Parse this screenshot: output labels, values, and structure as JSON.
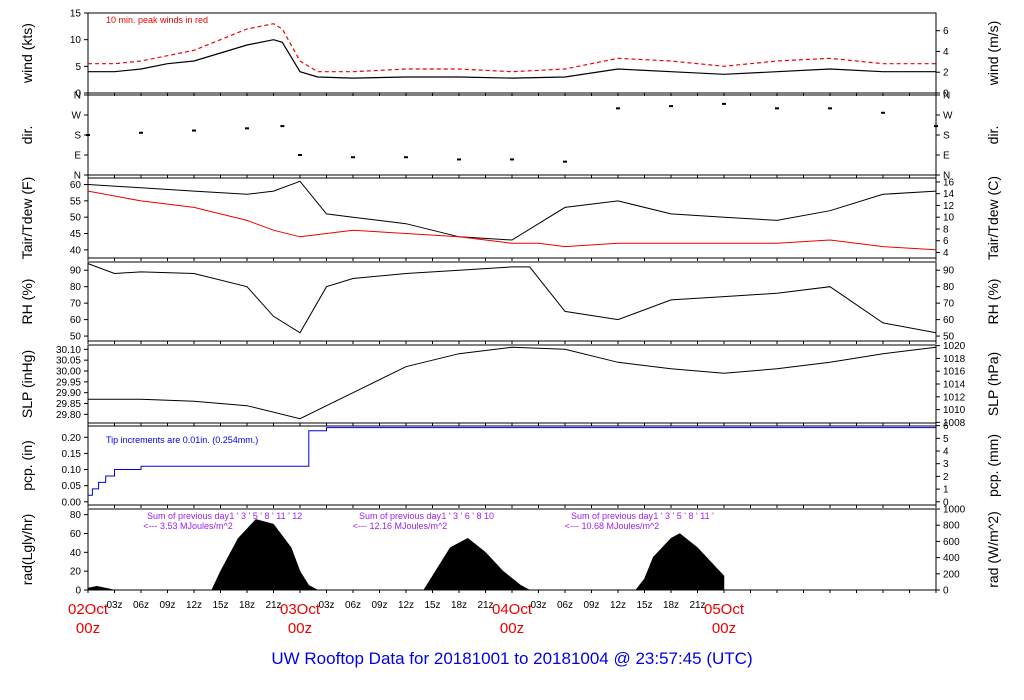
{
  "footer_title": "UW Rooftop Data for 20181001  to  20181004 @ 23:57:45  (UTC)",
  "colors": {
    "black": "#000000",
    "red": "#ee0000",
    "blue": "#0000ee",
    "purple": "#a020f0"
  },
  "chart_data": [
    {
      "type": "line",
      "id": "wind",
      "ylabel": "wind (kts)",
      "ylabel_right": "wind (m/s)",
      "ylim": [
        0,
        15
      ],
      "yticks": [
        "0",
        "5",
        "10",
        "15"
      ],
      "ylim_right": [
        0,
        7.7
      ],
      "yticks_right": [
        "0",
        "2",
        "4",
        "6"
      ],
      "annotation": "10 min. peak winds in red",
      "x_hours": [
        0,
        3,
        6,
        9,
        12,
        15,
        18,
        21,
        22,
        24,
        26,
        30,
        36,
        42,
        48,
        54,
        60,
        66,
        72,
        78,
        84,
        90,
        96
      ],
      "series": [
        {
          "color": "#000000",
          "values": [
            4,
            4,
            4.5,
            5.5,
            6,
            7.5,
            9,
            10,
            9.5,
            4,
            3,
            2.8,
            3,
            3,
            2.8,
            3,
            4.5,
            4,
            3.5,
            4,
            4.5,
            4,
            4
          ]
        },
        {
          "color": "#ee0000",
          "values": [
            5.5,
            5.5,
            6,
            7,
            8,
            10,
            12,
            13,
            12,
            6,
            4,
            4,
            4.5,
            4.5,
            4,
            4.5,
            6.5,
            6,
            5,
            6,
            6.5,
            5.5,
            5.5
          ]
        }
      ]
    },
    {
      "type": "scatter",
      "id": "dir",
      "ylabel": "dir.",
      "ylabel_right": "dir.",
      "yticks": [
        "N",
        "E",
        "S",
        "W",
        "N"
      ],
      "ylim": [
        0,
        360
      ],
      "x_hours": [
        0,
        6,
        12,
        18,
        22,
        24,
        30,
        36,
        42,
        48,
        54,
        60,
        66,
        72,
        78,
        84,
        90,
        96
      ],
      "values": [
        180,
        190,
        200,
        210,
        220,
        90,
        80,
        80,
        70,
        70,
        60,
        300,
        310,
        320,
        300,
        300,
        280,
        220
      ]
    },
    {
      "type": "line",
      "id": "temp",
      "ylabel": "Tair/Tdew (F)",
      "ylabel_right": "Tair/Tdew (C)",
      "ylim": [
        37.5,
        62
      ],
      "yticks": [
        "40",
        "45",
        "50",
        "55",
        "60"
      ],
      "ylim_right": [
        3.06,
        16.67
      ],
      "yticks_right": [
        "4",
        "6",
        "8",
        "10",
        "12",
        "14",
        "16"
      ],
      "x_hours": [
        0,
        6,
        12,
        18,
        21,
        24,
        27,
        30,
        36,
        42,
        48,
        51,
        54,
        60,
        66,
        72,
        78,
        84,
        90,
        96
      ],
      "series": [
        {
          "color": "#000000",
          "values": [
            60,
            59,
            58,
            57,
            58,
            61,
            51,
            50,
            48,
            44,
            43,
            48,
            53,
            55,
            51,
            50,
            49,
            52,
            57,
            58
          ]
        },
        {
          "color": "#ee0000",
          "values": [
            58,
            55,
            53,
            49,
            46,
            44,
            45,
            46,
            45,
            44,
            42,
            42,
            41,
            42,
            42,
            42,
            42,
            43,
            41,
            40
          ]
        }
      ]
    },
    {
      "type": "line",
      "id": "rh",
      "ylabel": "RH (%)",
      "ylabel_right": "RH (%)",
      "ylim": [
        47,
        95
      ],
      "yticks": [
        "50",
        "60",
        "70",
        "80",
        "90"
      ],
      "yticks_right": [
        "50",
        "60",
        "70",
        "80",
        "90"
      ],
      "x_hours": [
        0,
        3,
        6,
        12,
        18,
        21,
        24,
        27,
        30,
        36,
        42,
        48,
        50,
        54,
        60,
        66,
        72,
        78,
        84,
        90,
        96
      ],
      "values": [
        94,
        88,
        89,
        88,
        80,
        62,
        52,
        80,
        85,
        88,
        90,
        92,
        92,
        65,
        60,
        72,
        74,
        76,
        80,
        58,
        52
      ]
    },
    {
      "type": "line",
      "id": "slp",
      "ylabel": "SLP (inHg)",
      "ylabel_right": "SLP (hPa)",
      "ylim": [
        29.76,
        30.12
      ],
      "yticks": [
        "29.80",
        "29.85",
        "29.90",
        "29.95",
        "30.00",
        "30.05",
        "30.10"
      ],
      "ylim_right": [
        1007.9,
        1020.1
      ],
      "yticks_right": [
        "1008",
        "1010",
        "1012",
        "1014",
        "1016",
        "1018",
        "1020"
      ],
      "x_hours": [
        0,
        6,
        12,
        18,
        24,
        30,
        36,
        42,
        48,
        54,
        60,
        66,
        72,
        78,
        84,
        90,
        96
      ],
      "values": [
        29.87,
        29.87,
        29.86,
        29.84,
        29.78,
        29.9,
        30.02,
        30.08,
        30.11,
        30.1,
        30.04,
        30.01,
        29.99,
        30.01,
        30.04,
        30.08,
        30.11
      ]
    },
    {
      "type": "line",
      "id": "pcp",
      "ylabel": "pcp. (in)",
      "ylabel_right": "pcp. (mm)",
      "ylim": [
        -0.01,
        0.235
      ],
      "yticks": [
        "0.00",
        "0.05",
        "0.10",
        "0.15",
        "0.20"
      ],
      "ylim_right": [
        -0.254,
        5.969
      ],
      "yticks_right": [
        "0",
        "1",
        "2",
        "3",
        "4",
        "5",
        "6"
      ],
      "annotation": "Tip increments are 0.01in. (0.254mm.)",
      "x_hours": [
        0,
        0.5,
        1.2,
        2,
        3,
        6,
        12,
        18,
        24,
        25,
        26,
        27,
        96
      ],
      "values": [
        0.02,
        0.04,
        0.06,
        0.08,
        0.1,
        0.11,
        0.11,
        0.11,
        0.11,
        0.22,
        0.22,
        0.23,
        0.23
      ]
    },
    {
      "type": "area",
      "id": "rad",
      "ylabel": "rad(Lgly/hr)",
      "ylabel_right": "rad (W/m^2)",
      "ylim": [
        0,
        86
      ],
      "yticks": [
        "0",
        "20",
        "40",
        "60",
        "80"
      ],
      "ylim_right": [
        0,
        1000
      ],
      "yticks_right": [
        "0",
        "200",
        "400",
        "600",
        "800",
        "1000"
      ],
      "day_notes": [
        {
          "x_hours": 12,
          "line1": "Sum of previous day",
          "line2": "<--- 3.53 MJoules/m^2"
        },
        {
          "x_hours": 36,
          "line1": "Sum of previous day",
          "line2": "<--- 12.16 MJoules/m^2"
        },
        {
          "x_hours": 60,
          "line1": "Sum of previous day",
          "line2": "<--- 10.68 MJoules/m^2"
        }
      ],
      "hour_marks": [
        {
          "x_hours": 16.0,
          "text": "1 ' 3 ' 5 ' 8 ' 11 ' 12"
        },
        {
          "x_hours": 40.0,
          "text": "1 ' 3 ' 6 ' 8   10"
        },
        {
          "x_hours": 64.0,
          "text": "1 ' 3 ' 5 ' 8 ' 11 '"
        }
      ],
      "x_hours": [
        0,
        1,
        2,
        3,
        14,
        15,
        17,
        19,
        21,
        23,
        24,
        25,
        26,
        38,
        39,
        41,
        43,
        45,
        47,
        49,
        50,
        62,
        63,
        64,
        66,
        67,
        69,
        71,
        72
      ],
      "values": [
        2,
        4,
        2,
        0,
        0,
        20,
        55,
        75,
        70,
        45,
        20,
        5,
        0,
        0,
        15,
        45,
        55,
        40,
        20,
        5,
        0,
        0,
        12,
        35,
        55,
        60,
        45,
        25,
        15
      ]
    }
  ],
  "x_axis": {
    "ticks": [
      "03z",
      "06z",
      "09z",
      "12z",
      "15z",
      "18z",
      "21z",
      "03z",
      "06z",
      "09z",
      "12z",
      "15z",
      "18z",
      "21z",
      "03z",
      "06z",
      "09z",
      "12z",
      "15z",
      "18z",
      "21z"
    ],
    "days": [
      {
        "date": "02Oct",
        "time": "00z"
      },
      {
        "date": "03Oct",
        "time": "00z"
      },
      {
        "date": "04Oct",
        "time": "00z"
      },
      {
        "date": "05Oct",
        "time": "00z"
      }
    ]
  }
}
